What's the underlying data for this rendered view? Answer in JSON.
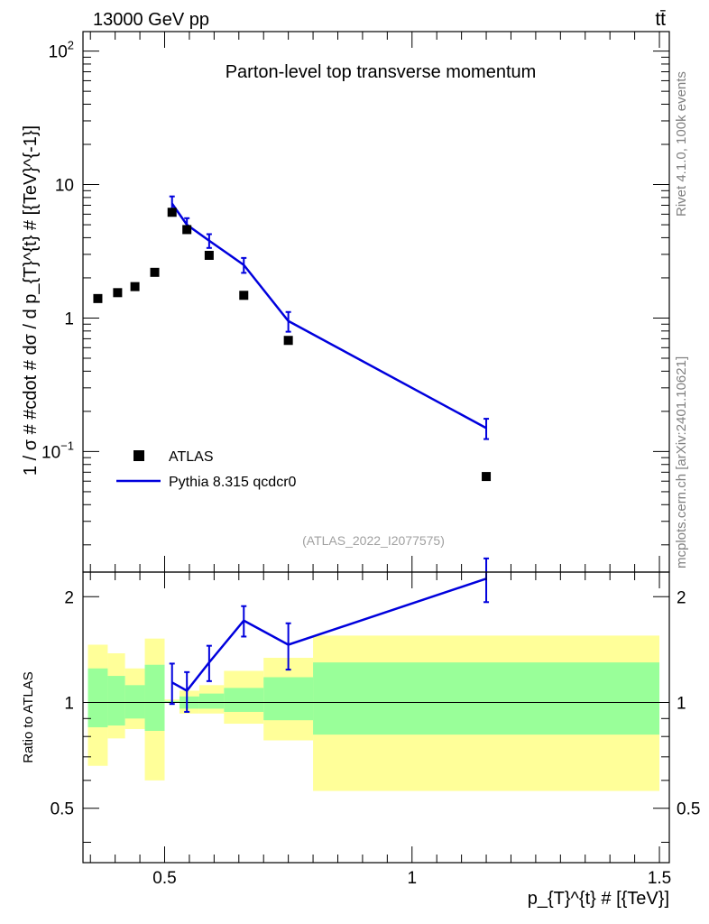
{
  "chart_data": {
    "header": {
      "energy_label": "13000 GeV pp",
      "process_label": "tt̄"
    },
    "side_labels": {
      "rivet": "Rivet 4.1.0,  100k events",
      "source": "mcplots.cern.ch [arXiv:2401.10621]"
    },
    "analysis_label": "(ATLAS_2022_I2077575)",
    "colors": {
      "mc": "#0000dd",
      "band_outer": "#ffff99",
      "band_inner": "#99ff99",
      "data": "#000000"
    },
    "main_panel": {
      "type": "scatter",
      "title": "Parton-level top transverse momentum",
      "ylabel": "1 / σ # #cdot # dσ / d p_{T}^{t} # [{TeV}^{-1}]",
      "yscale": "log",
      "ylim": [
        0.0125,
        140
      ],
      "yticks": [
        {
          "value": 0.1,
          "base": "10",
          "exp": "−1"
        },
        {
          "value": 1,
          "text": "1"
        },
        {
          "value": 10,
          "text": "10"
        },
        {
          "value": 100,
          "base": "10",
          "exp": "2"
        }
      ],
      "series": [
        {
          "name": "ATLAS",
          "kind": "markers",
          "x": [
            0.365,
            0.405,
            0.44,
            0.48,
            0.515,
            0.545,
            0.59,
            0.66,
            0.75,
            1.15
          ],
          "y": [
            1.4,
            1.55,
            1.72,
            2.2,
            6.2,
            4.6,
            2.95,
            1.48,
            0.68,
            0.065
          ]
        },
        {
          "name": "Pythia 8.315 qcdcr0",
          "kind": "line",
          "x": [
            0.515,
            0.545,
            0.59,
            0.66,
            0.75,
            1.15
          ],
          "y": [
            7.2,
            5.0,
            3.8,
            2.5,
            0.95,
            0.15
          ],
          "err": [
            0.95,
            0.6,
            0.45,
            0.32,
            0.16,
            0.026
          ]
        }
      ]
    },
    "ratio_panel": {
      "type": "line",
      "ylabel": "Ratio to ATLAS",
      "ylim": [
        0.35,
        2.35
      ],
      "yticks": [
        {
          "value": 0.5,
          "text": "0.5"
        },
        {
          "value": 1,
          "text": "1"
        },
        {
          "value": 2,
          "text": "2"
        }
      ],
      "bands": [
        {
          "x0": 0.345,
          "x1": 0.385,
          "outer": [
            0.66,
            1.46
          ],
          "inner": [
            0.85,
            1.25
          ]
        },
        {
          "x0": 0.385,
          "x1": 0.42,
          "outer": [
            0.79,
            1.38
          ],
          "inner": [
            0.86,
            1.19
          ]
        },
        {
          "x0": 0.42,
          "x1": 0.46,
          "outer": [
            0.84,
            1.25
          ],
          "inner": [
            0.9,
            1.12
          ]
        },
        {
          "x0": 0.46,
          "x1": 0.5,
          "outer": [
            0.6,
            1.52
          ],
          "inner": [
            0.83,
            1.28
          ]
        },
        {
          "x0": 0.5,
          "x1": 0.53,
          "outer": [
            1.01,
            1.02
          ],
          "inner": [
            1.0,
            1.01
          ]
        },
        {
          "x0": 0.53,
          "x1": 0.57,
          "outer": [
            0.93,
            1.08
          ],
          "inner": [
            0.96,
            1.04
          ]
        },
        {
          "x0": 0.57,
          "x1": 0.62,
          "outer": [
            0.93,
            1.12
          ],
          "inner": [
            0.96,
            1.06
          ]
        },
        {
          "x0": 0.62,
          "x1": 0.7,
          "outer": [
            0.87,
            1.23
          ],
          "inner": [
            0.94,
            1.1
          ]
        },
        {
          "x0": 0.7,
          "x1": 0.8,
          "outer": [
            0.78,
            1.34
          ],
          "inner": [
            0.89,
            1.18
          ]
        },
        {
          "x0": 0.8,
          "x1": 1.5,
          "outer": [
            0.56,
            1.55
          ],
          "inner": [
            0.81,
            1.3
          ]
        }
      ],
      "reference": 1,
      "series": [
        {
          "name": "Pythia 8.315 qcdcr0",
          "x": [
            0.515,
            0.545,
            0.59,
            0.66,
            0.75,
            1.15
          ],
          "y": [
            1.14,
            1.08,
            1.3,
            1.71,
            1.46,
            2.25
          ],
          "err": [
            0.15,
            0.14,
            0.15,
            0.17,
            0.22,
            0.32
          ]
        }
      ]
    },
    "xaxis": {
      "label": "p_{T}^{t} # [{TeV}]",
      "xlim": [
        0.335,
        1.52
      ],
      "major_ticks": [
        {
          "value": 0.5,
          "text": "0.5"
        },
        {
          "value": 1,
          "text": "1"
        },
        {
          "value": 1.5,
          "text": "1.5"
        }
      ],
      "minor_step": 0.05
    },
    "legend": {
      "position": "lower-left"
    }
  }
}
